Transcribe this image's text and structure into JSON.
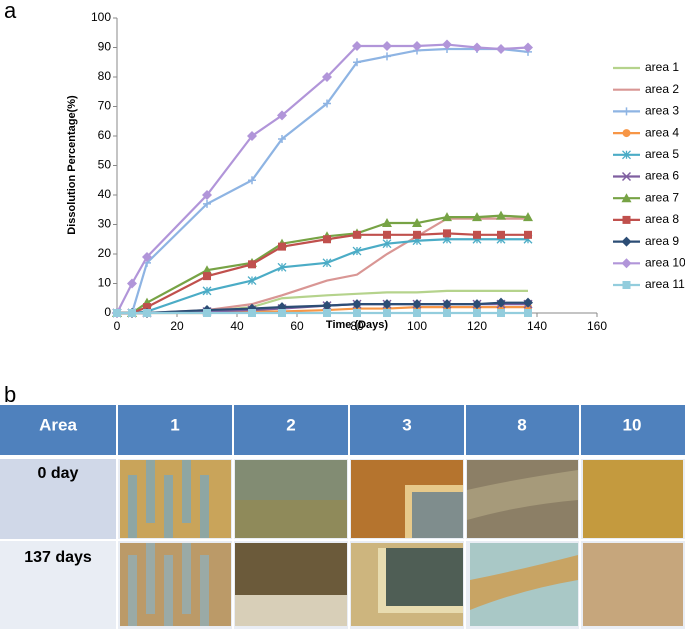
{
  "chart_data": {
    "type": "line",
    "y_label": "Dissolution Percentage(%)",
    "x_label": "Time (Days)",
    "x": [
      0,
      5,
      10,
      30,
      45,
      55,
      70,
      80,
      90,
      100,
      110,
      120,
      128,
      137
    ],
    "xlim": [
      0,
      160
    ],
    "xticks": [
      0,
      20,
      40,
      60,
      80,
      100,
      120,
      140,
      160
    ],
    "ylim": [
      0,
      100
    ],
    "yticks": [
      0,
      10,
      20,
      30,
      40,
      50,
      60,
      70,
      80,
      90,
      100
    ],
    "grid": false,
    "legend": "right",
    "series": [
      {
        "name": "area 1",
        "color": "#b5d38c",
        "marker": "none",
        "values": [
          0,
          0,
          0,
          0.5,
          2,
          5,
          6,
          6.5,
          7,
          7,
          7.5,
          7.5,
          7.5,
          7.5
        ]
      },
      {
        "name": "area 2",
        "color": "#d99694",
        "marker": "none",
        "values": [
          0,
          0,
          0,
          1,
          3,
          6,
          11,
          13,
          20,
          26,
          32,
          32,
          32,
          32
        ]
      },
      {
        "name": "area 3",
        "color": "#8eb4e3",
        "marker": "plus",
        "values": [
          0,
          0,
          17,
          37,
          45,
          59,
          71,
          85,
          87,
          89,
          89.5,
          89.5,
          89.5,
          88.5
        ]
      },
      {
        "name": "area 4",
        "color": "#f79646",
        "marker": "circle",
        "values": [
          0,
          0,
          0,
          0,
          0.5,
          0.5,
          1,
          1.5,
          1.5,
          2,
          2,
          2,
          2,
          2
        ]
      },
      {
        "name": "area 5",
        "color": "#4bacc6",
        "marker": "star",
        "values": [
          0,
          0,
          0.5,
          7.5,
          11,
          15.5,
          17,
          21,
          23.5,
          24.5,
          25,
          25,
          25,
          25
        ]
      },
      {
        "name": "area 6",
        "color": "#7f5fa0",
        "marker": "x",
        "values": [
          0,
          0,
          0,
          0.5,
          1,
          1.5,
          2.5,
          3,
          3,
          3,
          3,
          3,
          3,
          3
        ]
      },
      {
        "name": "area 7",
        "color": "#77a345",
        "marker": "triangle",
        "values": [
          0,
          0,
          3.5,
          14.5,
          17,
          23.5,
          26,
          27,
          30.5,
          30.5,
          32.5,
          32.5,
          33,
          32.5
        ]
      },
      {
        "name": "area 8",
        "color": "#c0504d",
        "marker": "square",
        "values": [
          0,
          0,
          2,
          12.5,
          16.5,
          22.5,
          25,
          26.5,
          26.5,
          26.5,
          27,
          26.5,
          26.5,
          26.5
        ]
      },
      {
        "name": "area 9",
        "color": "#2c4d75",
        "marker": "diamond",
        "values": [
          0,
          0,
          0,
          1,
          1.5,
          2,
          2.5,
          3,
          3,
          3,
          3,
          3,
          3.5,
          3.5
        ]
      },
      {
        "name": "area 10",
        "color": "#b195d9",
        "marker": "diamond",
        "values": [
          0,
          10,
          19,
          40,
          60,
          67,
          80,
          90.5,
          90.5,
          90.5,
          91,
          90,
          89.5,
          90
        ]
      },
      {
        "name": "area 11",
        "color": "#93cddd",
        "marker": "square",
        "values": [
          0,
          0,
          0,
          0,
          0,
          0,
          0,
          0,
          0,
          0,
          0,
          0,
          0,
          0
        ]
      }
    ]
  },
  "panel_labels": [
    "a",
    "b"
  ],
  "table": {
    "columns": [
      "Area",
      "1",
      "2",
      "3",
      "8",
      "10"
    ],
    "rows": [
      "0 day",
      "137 days"
    ]
  }
}
